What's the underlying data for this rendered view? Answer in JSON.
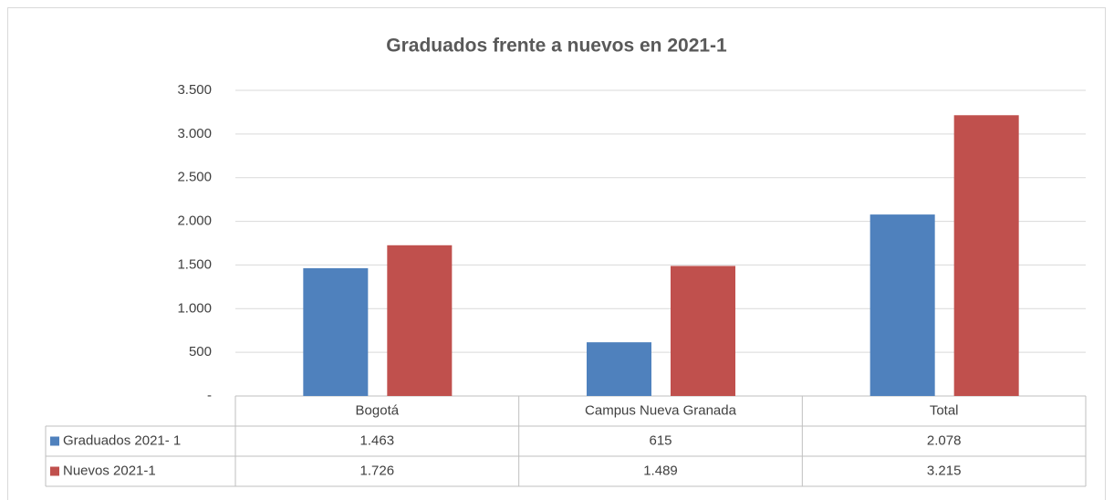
{
  "chart_data": {
    "type": "bar",
    "title": "Graduados frente a nuevos en 2021-1",
    "categories": [
      "Bogotá",
      "Campus Nueva Granada",
      "Total"
    ],
    "series": [
      {
        "name": "Graduados 2021- 1",
        "color": "#4f81bd",
        "values": [
          1463,
          615,
          2078
        ],
        "value_labels": [
          "1.463",
          "615",
          "2.078"
        ]
      },
      {
        "name": "Nuevos 2021-1",
        "color": "#c0504d",
        "values": [
          1726,
          1489,
          3215
        ],
        "value_labels": [
          "1.726",
          "1.489",
          "3.215"
        ]
      }
    ],
    "ylim": [
      0,
      3500
    ],
    "yticks": [
      {
        "value": 0,
        "label": "-"
      },
      500,
      {
        "value": 1000,
        "label": "1.000"
      },
      {
        "value": 1500,
        "label": "1.500"
      },
      {
        "value": 2000,
        "label": "2.000"
      },
      {
        "value": 2500,
        "label": "2.500"
      },
      {
        "value": 3000,
        "label": "3.000"
      },
      {
        "value": 3500,
        "label": "3.500"
      }
    ],
    "grid": true
  }
}
